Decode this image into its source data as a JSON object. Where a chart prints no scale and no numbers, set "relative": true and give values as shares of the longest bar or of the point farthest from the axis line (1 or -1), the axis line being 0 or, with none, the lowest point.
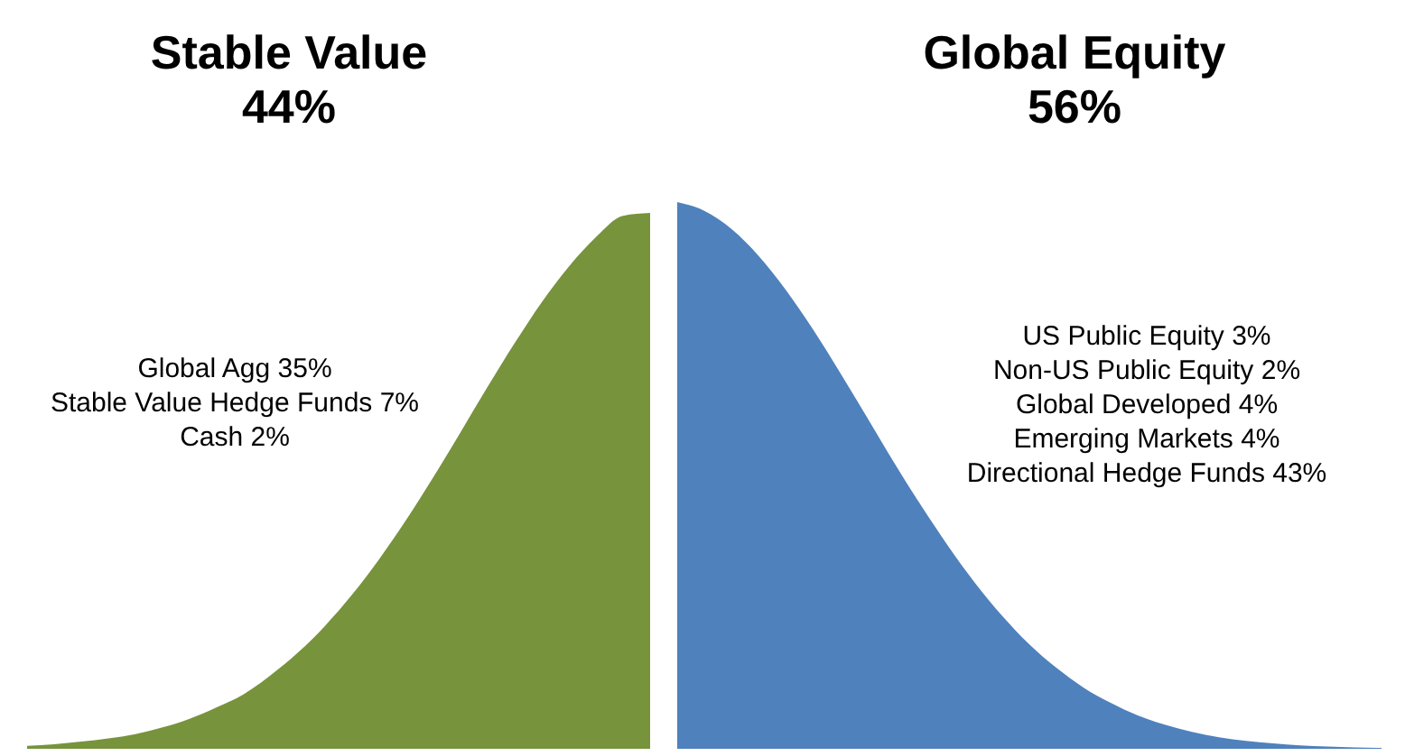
{
  "chart_data": {
    "type": "area",
    "relative": true,
    "categories": [
      null,
      null,
      null,
      null,
      null,
      null,
      null,
      null,
      null,
      null,
      null,
      null,
      null,
      null,
      null,
      null,
      null,
      null,
      null,
      null,
      null,
      null,
      null,
      null,
      null,
      null,
      null,
      null,
      null,
      null,
      null,
      null,
      null,
      null,
      null,
      null,
      null,
      null,
      null,
      null,
      null,
      null,
      null,
      null,
      null,
      null,
      null,
      null,
      null,
      null,
      null
    ],
    "series": [
      {
        "color": "#77933c",
        "values": [
          0.0055,
          0.0084,
          0.013,
          0.019,
          0.027,
          0.039,
          0.055,
          0.076,
          0.1,
          0.135,
          0.176,
          0.225,
          0.282,
          0.347,
          0.419,
          0.497,
          0.579,
          0.662,
          0.742,
          0.817,
          0.882,
          0.936,
          0.975,
          0.98,
          null,
          null,
          null,
          null,
          null,
          null,
          null,
          null,
          null,
          null,
          null,
          null,
          null,
          null,
          null,
          null,
          null,
          null,
          null,
          null,
          null,
          null,
          null,
          null,
          null,
          null,
          null
        ]
      },
      {
        "color": "#4f81bd",
        "values": [
          null,
          null,
          null,
          null,
          null,
          null,
          null,
          null,
          null,
          null,
          null,
          null,
          null,
          null,
          null,
          null,
          null,
          null,
          null,
          null,
          null,
          null,
          null,
          null,
          1,
          0.984,
          0.951,
          0.902,
          0.84,
          0.768,
          0.689,
          0.607,
          0.524,
          0.445,
          0.371,
          0.303,
          0.243,
          0.191,
          0.148,
          0.112,
          0.084,
          0.061,
          0.044,
          0.031,
          0.021,
          0.0145,
          0.0097,
          0.0063,
          0.0041,
          0.0026,
          0.0016
        ]
      }
    ],
    "annotations": [
      "Stable Value\n44%",
      "Global Equity\n56%",
      "Global Agg 35%\nStable Value Hedge Funds 7%\nCash 2%",
      "US Public Equity 3%\nNon-US Public Equity 2%\nGlobal Developed 4%\nEmerging Markets 4%\nDirectional Hedge Funds 43%"
    ]
  }
}
